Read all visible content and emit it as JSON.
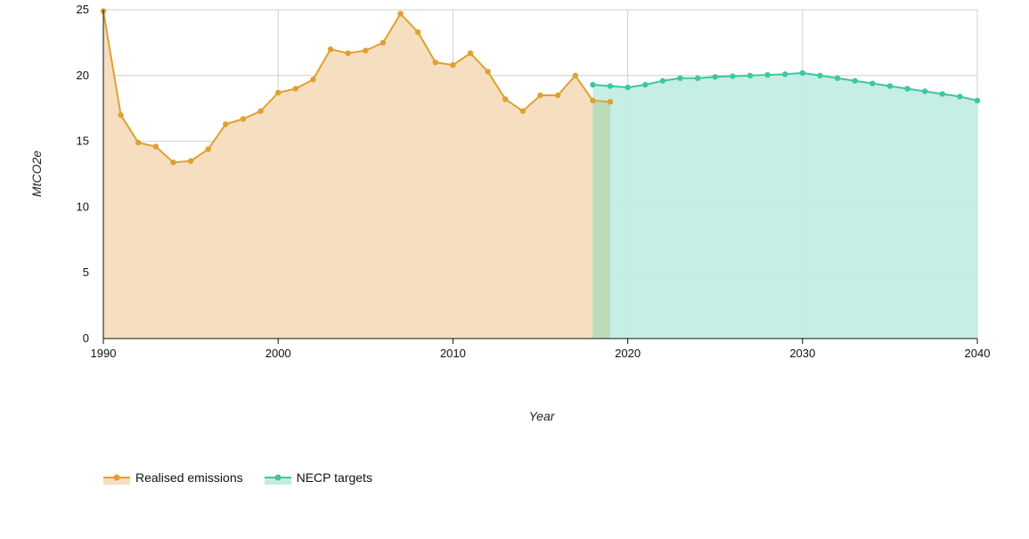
{
  "chart_data": {
    "type": "area",
    "xlabel": "Year",
    "ylabel": "MtCO2e",
    "xlim": [
      1990,
      2040
    ],
    "ylim": [
      0,
      25
    ],
    "x_ticks": [
      1990,
      2000,
      2010,
      2020,
      2030,
      2040
    ],
    "y_ticks": [
      0,
      5,
      10,
      15,
      20,
      25
    ],
    "grid": true,
    "legend_position": "bottom-left",
    "series": [
      {
        "name": "Realised emissions",
        "color": "#e0a030",
        "fill": "#f5dfc0",
        "x": [
          1990,
          1991,
          1992,
          1993,
          1994,
          1995,
          1996,
          1997,
          1998,
          1999,
          2000,
          2001,
          2002,
          2003,
          2004,
          2005,
          2006,
          2007,
          2008,
          2009,
          2010,
          2011,
          2012,
          2013,
          2014,
          2015,
          2016,
          2017,
          2018,
          2019
        ],
        "values": [
          24.9,
          17.0,
          14.9,
          14.6,
          13.4,
          13.5,
          14.4,
          16.3,
          16.7,
          17.3,
          18.7,
          19.0,
          19.7,
          22.0,
          21.7,
          21.9,
          22.5,
          24.7,
          23.3,
          21.0,
          20.8,
          21.7,
          20.3,
          18.2,
          17.3,
          18.5,
          18.5,
          20.0,
          18.1,
          18.0
        ]
      },
      {
        "name": "NECP targets",
        "color": "#3cc8a0",
        "fill": "#c2ede3",
        "x": [
          2018,
          2019,
          2020,
          2021,
          2022,
          2023,
          2024,
          2025,
          2026,
          2027,
          2028,
          2029,
          2030,
          2031,
          2032,
          2033,
          2034,
          2035,
          2036,
          2037,
          2038,
          2039,
          2040
        ],
        "values": [
          19.3,
          19.2,
          19.1,
          19.3,
          19.6,
          19.8,
          19.8,
          19.9,
          19.95,
          20.0,
          20.05,
          20.1,
          20.2,
          20.0,
          19.8,
          19.6,
          19.4,
          19.2,
          19.0,
          18.8,
          18.6,
          18.4,
          18.1
        ]
      }
    ]
  }
}
